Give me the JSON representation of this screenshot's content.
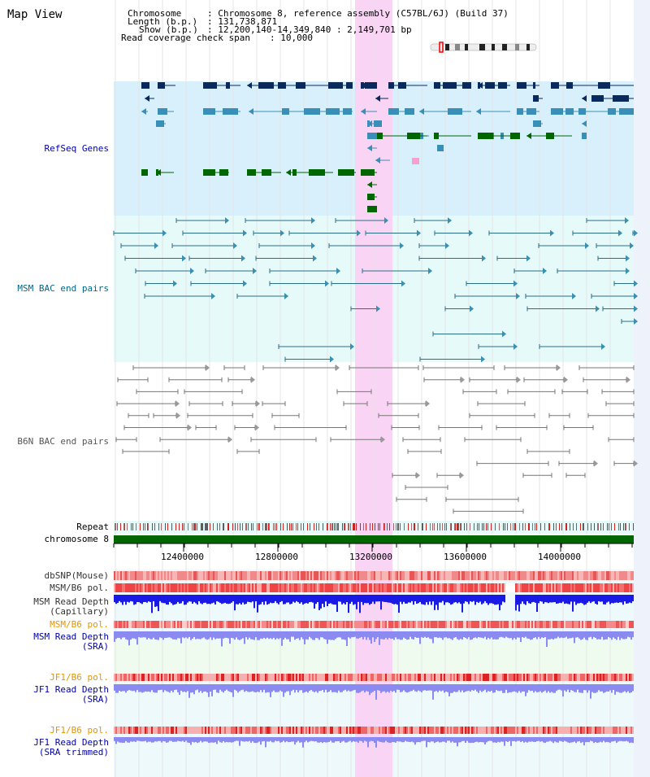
{
  "title": "Map View",
  "header": {
    "chromosome_label": "Chromosome",
    "chromosome_value": ": Chromosome 8, reference assembly (C57BL/6J) (Build 37)",
    "length_label": "Length (b.p.)",
    "length_value": ": 131,738,871",
    "show_label": "Show (b.p.)",
    "show_value": ": 12,200,140-14,349,840 : 2,149,701 bp",
    "span_label": "Read coverage check span",
    "span_value": ": 10,000"
  },
  "tracks": {
    "refseq": "RefSeq Genes",
    "msm_bac": "MSM BAC end pairs",
    "b6n_bac": "B6N BAC end pairs",
    "repeat": "Repeat",
    "chromosome": "chromosome 8",
    "dbsnp": "dbSNP(Mouse)",
    "msm_b6_pol_1": "MSM/B6 pol.",
    "msm_depth_cap_1": "MSM Read Depth",
    "msm_depth_cap_2": "(Capillary)",
    "msm_b6_pol_2": "MSM/B6 pol.",
    "msm_depth_sra_1": "MSM Read Depth",
    "msm_depth_sra_2": "(SRA)",
    "jf1_b6_pol_1": "JF1/B6 pol.",
    "jf1_depth_sra_1": "JF1 Read Depth",
    "jf1_depth_sra_2": "(SRA)",
    "jf1_b6_pol_2": "JF1/B6 pol.",
    "jf1_depth_trim_1": "JF1 Read Depth",
    "jf1_depth_trim_2": "(SRA trimmed)"
  },
  "ruler": {
    "ticks": [
      "12400000",
      "12800000",
      "13200000",
      "13600000",
      "14000000"
    ]
  },
  "colors": {
    "refseq_bg": "#d8f0fb",
    "msm_bg": "#e6fafa",
    "gene_dark": "#0a2a5e",
    "gene_mid": "#3a8fb8",
    "gene_green": "#006600",
    "msm_line": "#2a6f8a",
    "b6n_line": "#777777",
    "highlight": "#f9d4f4",
    "chrom_bar": "#006600",
    "depth_dark": "#1a1ae6",
    "depth_light": "#8a8af0",
    "label_navy": "#0000aa",
    "label_orange": "#e69500"
  }
}
